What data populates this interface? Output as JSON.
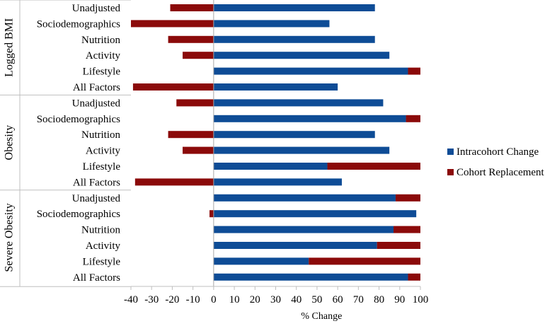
{
  "chart_data": {
    "type": "bar",
    "orientation": "horizontal",
    "stacked": true,
    "xlabel": "% Change",
    "xlim": [
      -40,
      100
    ],
    "xticks": [
      -40,
      -30,
      -20,
      -10,
      0,
      10,
      20,
      30,
      40,
      50,
      60,
      70,
      80,
      90,
      100
    ],
    "tick_labels": [
      "-40",
      "-30",
      "-20",
      "-10",
      "0",
      "10",
      "20",
      "30",
      "40",
      "50",
      "60",
      "70",
      "80",
      "90",
      "100"
    ],
    "grid": false,
    "legend_position": "right",
    "series": [
      {
        "name": "Intracohort Change",
        "color": "#0e4c96"
      },
      {
        "name": "Cohort Replacement",
        "color": "#8b0a0a"
      }
    ],
    "groups": [
      {
        "name": "Logged BMI",
        "categories": [
          {
            "label": "Unadjusted",
            "intracohort": 78,
            "replacement": -21
          },
          {
            "label": "Sociodemographics",
            "intracohort": 56,
            "replacement": -40
          },
          {
            "label": "Nutrition",
            "intracohort": 78,
            "replacement": -22
          },
          {
            "label": "Activity",
            "intracohort": 85,
            "replacement": -15
          },
          {
            "label": "Lifestyle",
            "intracohort": 94,
            "replacement": 6
          },
          {
            "label": "All Factors",
            "intracohort": 60,
            "replacement": -39
          }
        ]
      },
      {
        "name": "Obesity",
        "categories": [
          {
            "label": "Unadjusted",
            "intracohort": 82,
            "replacement": -18
          },
          {
            "label": "Sociodemographics",
            "intracohort": 93,
            "replacement": 7
          },
          {
            "label": "Nutrition",
            "intracohort": 78,
            "replacement": -22
          },
          {
            "label": "Activity",
            "intracohort": 85,
            "replacement": -15
          },
          {
            "label": "Lifestyle",
            "intracohort": 55,
            "replacement": 45
          },
          {
            "label": "All Factors",
            "intracohort": 62,
            "replacement": -38
          }
        ]
      },
      {
        "name": "Severe Obesity",
        "categories": [
          {
            "label": "Unadjusted",
            "intracohort": 88,
            "replacement": 12
          },
          {
            "label": "Sociodemographics",
            "intracohort": 98,
            "replacement": -2
          },
          {
            "label": "Nutrition",
            "intracohort": 87,
            "replacement": 13
          },
          {
            "label": "Activity",
            "intracohort": 79,
            "replacement": 21
          },
          {
            "label": "Lifestyle",
            "intracohort": 46,
            "replacement": 54
          },
          {
            "label": "All Factors",
            "intracohort": 94,
            "replacement": 6
          }
        ]
      }
    ]
  }
}
